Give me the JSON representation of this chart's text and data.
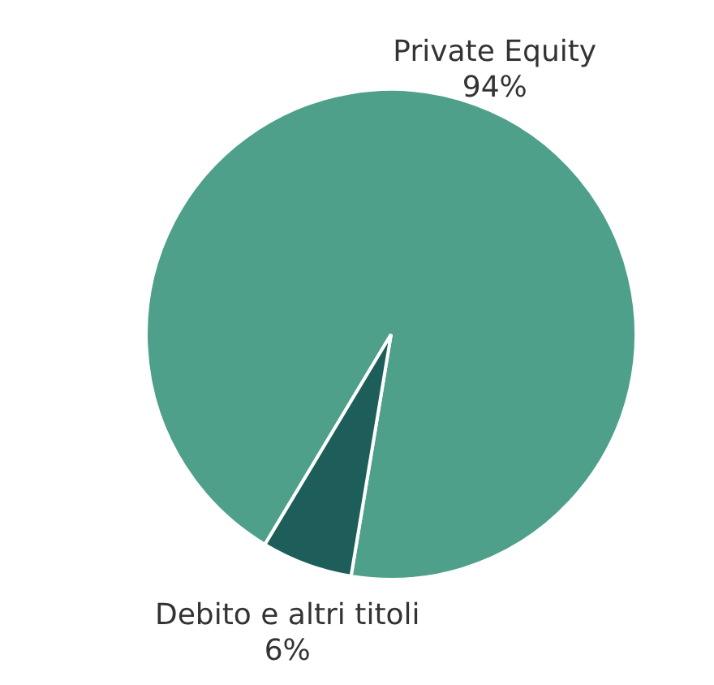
{
  "chart_data": {
    "type": "pie",
    "categories": [
      "Private Equity",
      "Debito e altri titoli"
    ],
    "values": [
      94,
      6
    ],
    "value_labels": [
      "94%",
      "6%"
    ],
    "colors": [
      "#4fa08b",
      "#1d5e5a"
    ]
  }
}
